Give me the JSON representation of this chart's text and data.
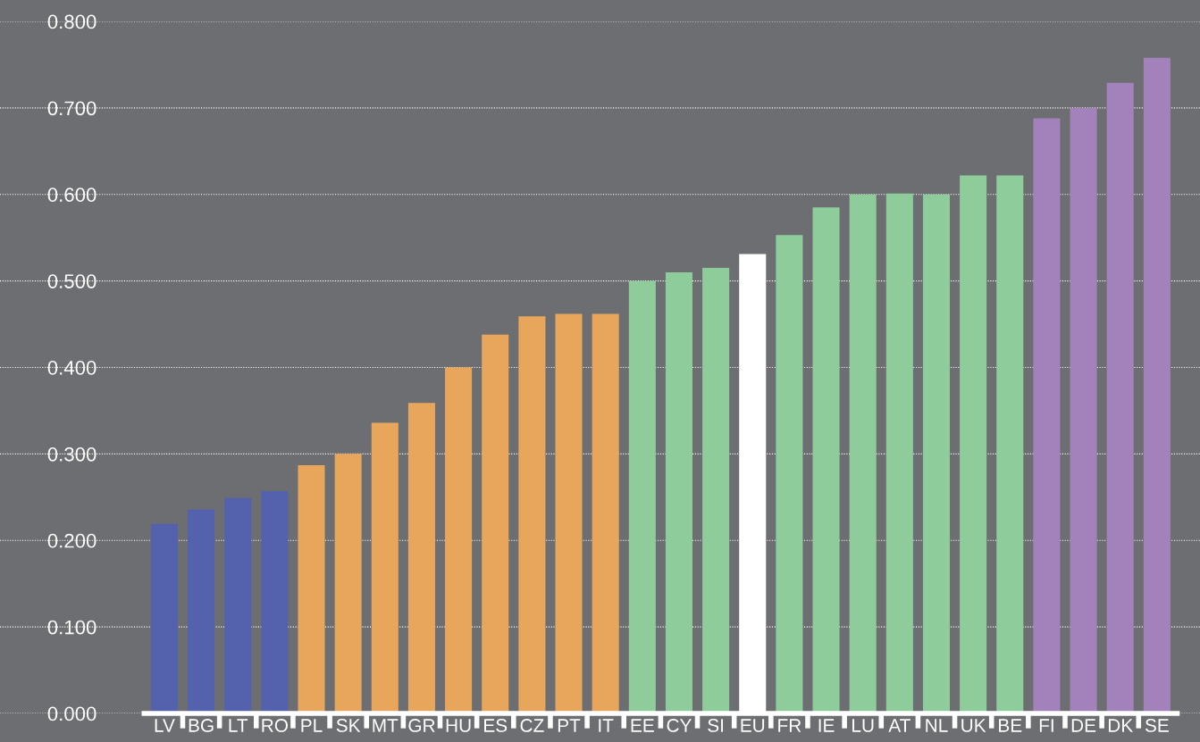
{
  "chart_data": {
    "type": "bar",
    "categories": [
      "LV",
      "BG",
      "LT",
      "RO",
      "PL",
      "SK",
      "MT",
      "GR",
      "HU",
      "ES",
      "CZ",
      "PT",
      "IT",
      "EE",
      "CY",
      "SI",
      "EU",
      "FR",
      "IE",
      "LU",
      "AT",
      "NL",
      "UK",
      "BE",
      "FI",
      "DE",
      "DK",
      "SE"
    ],
    "values": [
      0.219,
      0.236,
      0.249,
      0.257,
      0.287,
      0.3,
      0.336,
      0.359,
      0.4,
      0.438,
      0.459,
      0.462,
      0.462,
      0.5,
      0.51,
      0.515,
      0.531,
      0.553,
      0.585,
      0.6,
      0.601,
      0.6,
      0.622,
      0.622,
      0.688,
      0.7,
      0.729,
      0.758
    ],
    "colors": [
      "#5462ad",
      "#5462ad",
      "#5462ad",
      "#5462ad",
      "#e8a65c",
      "#e8a65c",
      "#e8a65c",
      "#e8a65c",
      "#e8a65c",
      "#e8a65c",
      "#e8a65c",
      "#e8a65c",
      "#e8a65c",
      "#8ecd9b",
      "#8ecd9b",
      "#8ecd9b",
      "#ffffff",
      "#8ecd9b",
      "#8ecd9b",
      "#8ecd9b",
      "#8ecd9b",
      "#8ecd9b",
      "#8ecd9b",
      "#8ecd9b",
      "#a382bb",
      "#a382bb",
      "#a382bb",
      "#a382bb"
    ],
    "ylim": [
      0,
      0.8
    ],
    "yticks": [
      {
        "value": 0,
        "label": "0.000"
      },
      {
        "value": 0.1,
        "label": "0.100"
      },
      {
        "value": 0.2,
        "label": "0.200"
      },
      {
        "value": 0.3,
        "label": "0.300"
      },
      {
        "value": 0.4,
        "label": "0.400"
      },
      {
        "value": 0.5,
        "label": "0.500"
      },
      {
        "value": 0.6,
        "label": "0.600"
      },
      {
        "value": 0.7,
        "label": "0.700"
      },
      {
        "value": 0.8,
        "label": "0.800"
      }
    ],
    "grid": "y"
  }
}
